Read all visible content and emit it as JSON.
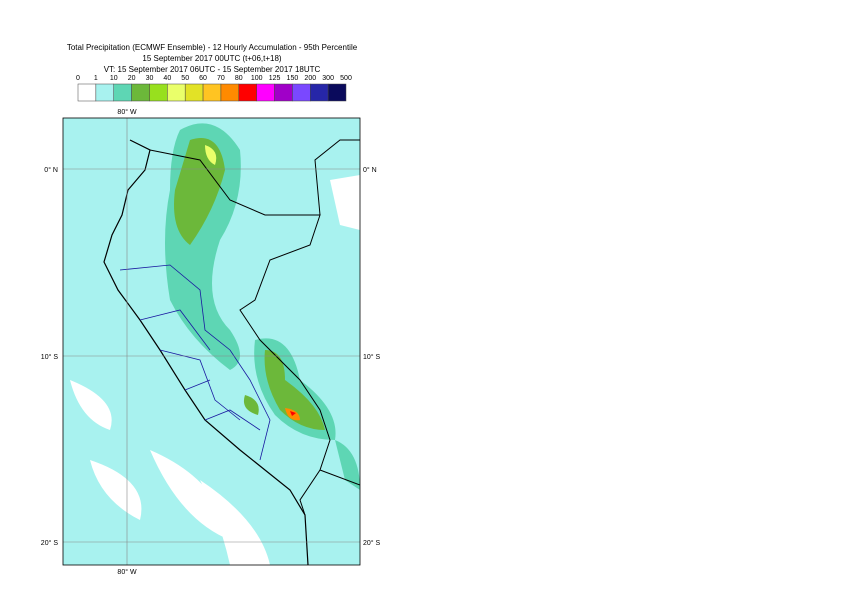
{
  "title": [
    "Total Precipitation (ECMWF Ensemble) - 12 Hourly Accumulation - 95th Percentile",
    "15 September 2017 00UTC (t+06,t+18)",
    "VT: 15 September 2017 06UTC - 15 September 2017 18UTC"
  ],
  "legend": {
    "thresholds": [
      0,
      1,
      10,
      20,
      30,
      40,
      50,
      60,
      70,
      80,
      100,
      125,
      150,
      200,
      300,
      500
    ],
    "colors": [
      "#ffffff",
      "#a8f2ef",
      "#5ed6b4",
      "#6cb83a",
      "#98e01e",
      "#eaff6a",
      "#e2e226",
      "#ffc422",
      "#ff8a00",
      "#ff0000",
      "#ff00ff",
      "#a000c8",
      "#7a48ff",
      "#2626a8",
      "#0a0a5c"
    ]
  },
  "map": {
    "lon_labels": [
      "80° W"
    ],
    "lat_labels": [
      "0° N",
      "10° S",
      "20° S"
    ]
  }
}
